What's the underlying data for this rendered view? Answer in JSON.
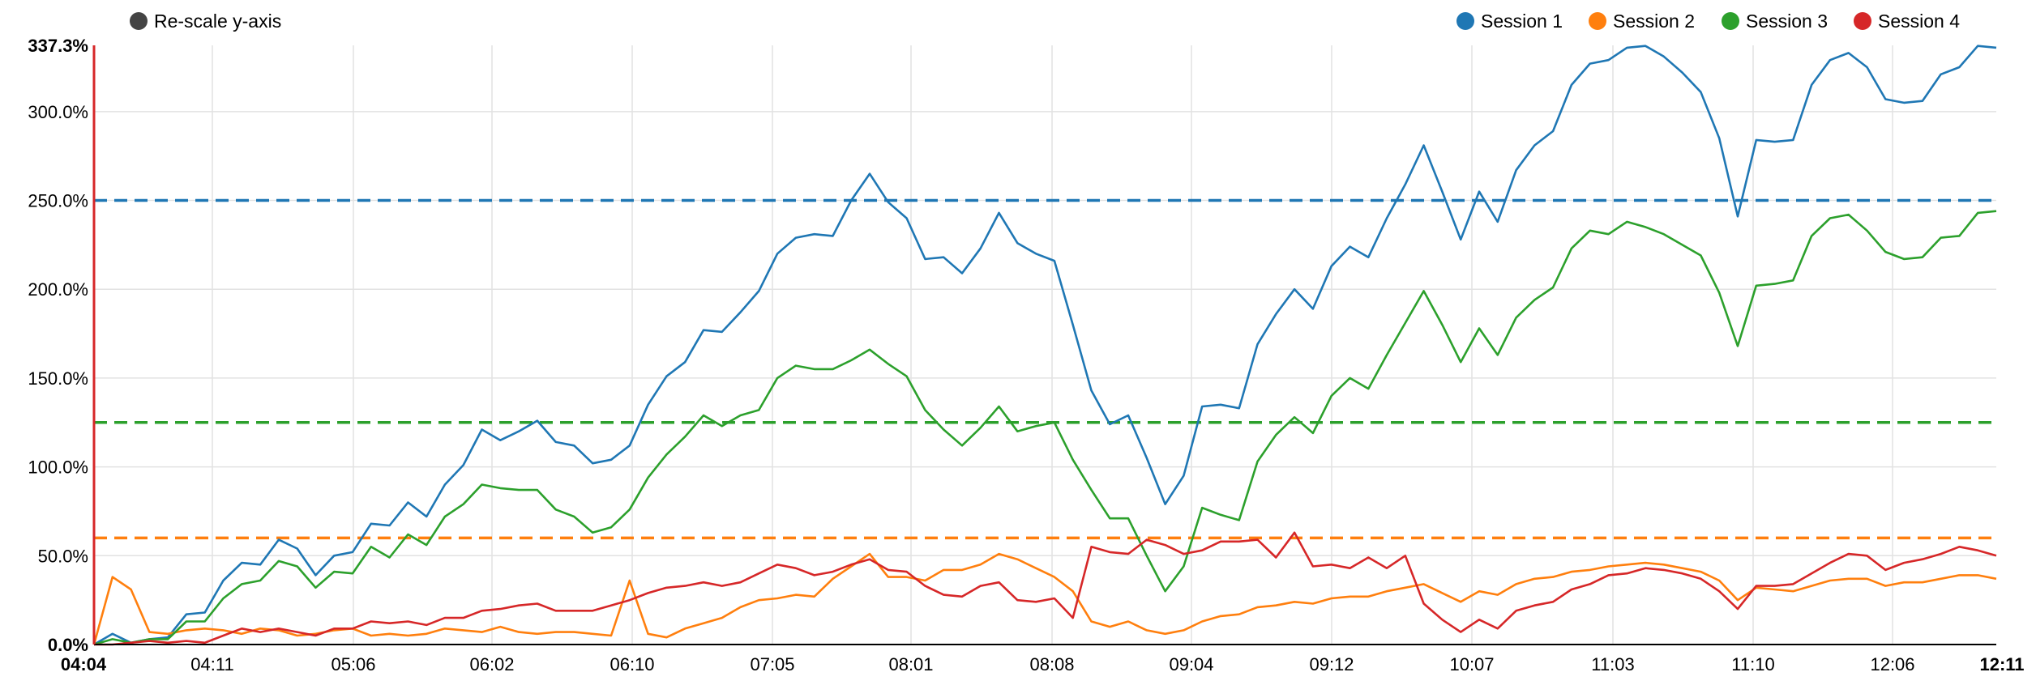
{
  "controls": {
    "rescale_label": "Re-scale y-axis",
    "rescale_color": "#444444"
  },
  "legend": [
    {
      "label": "Session 1",
      "color": "#1f77b4"
    },
    {
      "label": "Session 2",
      "color": "#ff7f0e"
    },
    {
      "label": "Session 3",
      "color": "#2ca02c"
    },
    {
      "label": "Session 4",
      "color": "#d62728"
    }
  ],
  "chart_data": {
    "type": "line",
    "title": "",
    "xlabel": "",
    "ylabel": "",
    "ylim": [
      0,
      337.3
    ],
    "y_ticks": [
      "0.0%",
      "50.0%",
      "100.0%",
      "150.0%",
      "200.0%",
      "250.0%",
      "300.0%",
      "337.3%"
    ],
    "x_ticks": [
      "04:04",
      "04:11",
      "05:06",
      "06:02",
      "06:10",
      "07:05",
      "08:01",
      "08:08",
      "09:04",
      "09:12",
      "10:07",
      "11:03",
      "11:10",
      "12:06",
      "12:11"
    ],
    "grid": true,
    "legend_position": "top-right",
    "reference_lines": [
      {
        "series": "Session 1",
        "value": 250
      },
      {
        "series": "Session 3",
        "value": 125
      },
      {
        "series": "Session 2",
        "value": 60
      }
    ],
    "series": [
      {
        "name": "Session 1",
        "color": "#1f77b4",
        "values": [
          0,
          6,
          1,
          3,
          4,
          17,
          18,
          36,
          46,
          45,
          59,
          54,
          39,
          50,
          52,
          68,
          67,
          80,
          72,
          90,
          101,
          121,
          115,
          120,
          126,
          114,
          112,
          102,
          104,
          112,
          135,
          151,
          159,
          177,
          176,
          187,
          199,
          220,
          229,
          231,
          230,
          250,
          265,
          249,
          240,
          217,
          218,
          209,
          223,
          243,
          226,
          220,
          216,
          180,
          143,
          124,
          129,
          105,
          79,
          95,
          134,
          135,
          133,
          169,
          186,
          200,
          189,
          213,
          224,
          218,
          240,
          259,
          281,
          255,
          228,
          255,
          238,
          267,
          281,
          289,
          315,
          327,
          329,
          336,
          337,
          331,
          322,
          311,
          285,
          241,
          284,
          283,
          284,
          315,
          329,
          333,
          325,
          307,
          305,
          306,
          321,
          325,
          337,
          336
        ]
      },
      {
        "name": "Session 2",
        "color": "#ff7f0e",
        "values": [
          0,
          38,
          31,
          7,
          6,
          8,
          9,
          8,
          6,
          9,
          8,
          5,
          6,
          8,
          9,
          5,
          6,
          5,
          6,
          9,
          8,
          7,
          10,
          7,
          6,
          7,
          7,
          6,
          5,
          36,
          6,
          4,
          9,
          12,
          15,
          21,
          25,
          26,
          28,
          27,
          37,
          44,
          51,
          38,
          38,
          36,
          42,
          42,
          45,
          51,
          48,
          43,
          38,
          30,
          13,
          10,
          13,
          8,
          6,
          8,
          13,
          16,
          17,
          21,
          22,
          24,
          23,
          26,
          27,
          27,
          30,
          32,
          34,
          29,
          24,
          30,
          28,
          34,
          37,
          38,
          41,
          42,
          44,
          45,
          46,
          45,
          43,
          41,
          36,
          25,
          32,
          31,
          30,
          33,
          36,
          37,
          37,
          33,
          35,
          35,
          37,
          39,
          39,
          37
        ]
      },
      {
        "name": "Session 3",
        "color": "#2ca02c",
        "values": [
          0,
          3,
          1,
          3,
          3,
          13,
          13,
          26,
          34,
          36,
          47,
          44,
          32,
          41,
          40,
          55,
          49,
          62,
          56,
          72,
          79,
          90,
          88,
          87,
          87,
          76,
          72,
          63,
          66,
          76,
          94,
          107,
          117,
          129,
          123,
          129,
          132,
          150,
          157,
          155,
          155,
          160,
          166,
          158,
          151,
          132,
          121,
          112,
          122,
          134,
          120,
          123,
          125,
          104,
          87,
          71,
          71,
          50,
          30,
          44,
          77,
          73,
          70,
          103,
          118,
          128,
          119,
          140,
          150,
          144,
          163,
          181,
          199,
          180,
          159,
          178,
          163,
          184,
          194,
          201,
          223,
          233,
          231,
          238,
          235,
          231,
          225,
          219,
          198,
          168,
          202,
          203,
          205,
          230,
          240,
          242,
          233,
          221,
          217,
          218,
          229,
          230,
          243,
          244
        ]
      },
      {
        "name": "Session 4",
        "color": "#d62728",
        "values": [
          0,
          0,
          1,
          2,
          1,
          2,
          1,
          5,
          9,
          7,
          9,
          7,
          5,
          9,
          9,
          13,
          12,
          13,
          11,
          15,
          15,
          19,
          20,
          22,
          23,
          19,
          19,
          19,
          22,
          25,
          29,
          32,
          33,
          35,
          33,
          35,
          40,
          45,
          43,
          39,
          41,
          45,
          48,
          42,
          41,
          33,
          28,
          27,
          33,
          35,
          25,
          24,
          26,
          15,
          55,
          52,
          51,
          59,
          56,
          51,
          53,
          58,
          58,
          59,
          49,
          63,
          44,
          45,
          43,
          49,
          43,
          50,
          23,
          14,
          7,
          14,
          9,
          19,
          22,
          24,
          31,
          34,
          39,
          40,
          43,
          42,
          40,
          37,
          30,
          20,
          33,
          33,
          34,
          40,
          46,
          51,
          50,
          42,
          46,
          48,
          51,
          55,
          53,
          50
        ]
      }
    ]
  }
}
